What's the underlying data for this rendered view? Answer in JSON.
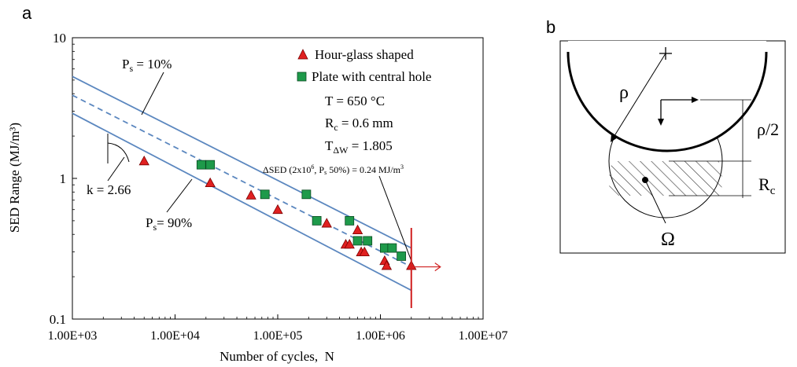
{
  "panel_a": {
    "label": "a",
    "chart_data": {
      "type": "scatter",
      "xscale": "log",
      "yscale": "log",
      "xlabel": "Number of cycles,  N",
      "ylabel": "SED Range (MJ/m³)",
      "xlim": [
        1000,
        10000000
      ],
      "ylim": [
        0.1,
        10
      ],
      "x_ticks": [
        1000,
        10000,
        100000,
        1000000,
        10000000
      ],
      "x_tick_labels": [
        "1.00E+03",
        "1.00E+04",
        "1.00E+05",
        "1.00E+06",
        "1.00E+07"
      ],
      "y_ticks": [
        0.1,
        1,
        10
      ],
      "y_tick_labels": [
        "0.1",
        "1",
        "10"
      ],
      "grid": false,
      "legend_position": "top-right",
      "series": [
        {
          "name": "Hour-glass shaped",
          "marker": "triangle",
          "color": "#e02020",
          "points": [
            [
              5000,
              1.33
            ],
            [
              22000,
              0.93
            ],
            [
              55000,
              0.76
            ],
            [
              100000,
              0.6
            ],
            [
              300000,
              0.48
            ],
            [
              460000,
              0.34
            ],
            [
              500000,
              0.34
            ],
            [
              600000,
              0.43
            ],
            [
              650000,
              0.3
            ],
            [
              700000,
              0.3
            ],
            [
              1100000,
              0.26
            ],
            [
              1150000,
              0.24
            ],
            [
              2000000,
              0.24
            ]
          ]
        },
        {
          "name": "Plate with central hole",
          "marker": "square",
          "color": "#1e9a4a",
          "points": [
            [
              18000,
              1.25
            ],
            [
              22000,
              1.25
            ],
            [
              75000,
              0.77
            ],
            [
              190000,
              0.77
            ],
            [
              240000,
              0.5
            ],
            [
              500000,
              0.5
            ],
            [
              600000,
              0.36
            ],
            [
              750000,
              0.36
            ],
            [
              1100000,
              0.32
            ],
            [
              1300000,
              0.32
            ],
            [
              1600000,
              0.28
            ]
          ]
        }
      ],
      "bands": [
        {
          "id": "upper",
          "style": "solid",
          "color": "#5b87bf",
          "x": [
            1000,
            2000000
          ],
          "y": [
            5.3,
            0.32
          ]
        },
        {
          "id": "median",
          "style": "dashed",
          "color": "#5b87bf",
          "x": [
            1000,
            2000000
          ],
          "y": [
            3.9,
            0.235
          ]
        },
        {
          "id": "lower",
          "style": "solid",
          "color": "#5b87bf",
          "x": [
            1000,
            2000000
          ],
          "y": [
            2.9,
            0.16
          ]
        }
      ],
      "annotations": {
        "ps10_prefix": "P",
        "ps10_sub": "s",
        "ps10_suffix": " = 10%",
        "ps90_prefix": "P",
        "ps90_sub": "s",
        "ps90_suffix": "= 90%",
        "k_label": "k = 2.66",
        "T_label": "T = 650 °C",
        "rc_prefix": "R",
        "rc_sub": "c",
        "rc_suffix": " = 0.6 mm",
        "tw_prefix": "T",
        "tw_sub": "ΔW",
        "tw_suffix": " = 1.805",
        "dsed_a": "ΔSED (2x10",
        "dsed_sup": "6",
        "dsed_b": ", P",
        "dsed_sub": "s",
        "dsed_c": " 50%) = 0.24 MJ/m",
        "dsed_sup2": "3"
      },
      "vertical_marker": {
        "x": 2000000,
        "color": "#d02020"
      }
    }
  },
  "panel_b": {
    "label": "b",
    "rho_label": "ρ",
    "rho_half_label": "ρ/2",
    "rc_prefix": "R",
    "rc_sub": "c",
    "omega_label": "Ω"
  }
}
